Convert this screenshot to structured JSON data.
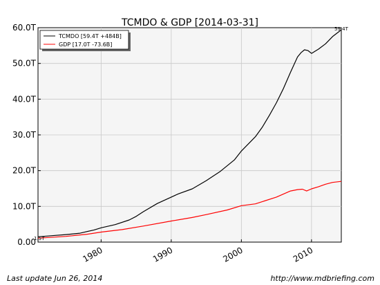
{
  "chart_data": {
    "type": "line",
    "title": "TCMDO & GDP  [2014-03-31]",
    "xlabel": "",
    "ylabel": "",
    "xlim": [
      1971,
      2014.25
    ],
    "ylim": [
      0,
      60
    ],
    "y_ticks": [
      0,
      10,
      20,
      30,
      40,
      50,
      60
    ],
    "y_tick_labels": [
      "0.00",
      "10.0T",
      "20.0T",
      "30.0T",
      "40.0T",
      "50.0T",
      "60.0T"
    ],
    "x_ticks": [
      1980,
      1990,
      2000,
      2010
    ],
    "x_tick_labels": [
      "1980",
      "1990",
      "2000",
      "2010"
    ],
    "grid": true,
    "legend_position": "top-left",
    "series": [
      {
        "name": "TCMDO [59.4T +484B]",
        "color": "#000000",
        "x": [
          1971,
          1973,
          1975,
          1977,
          1979,
          1980,
          1982,
          1984,
          1985,
          1986,
          1988,
          1990,
          1991,
          1993,
          1995,
          1997,
          1999,
          2000,
          2002,
          2003,
          2004,
          2005,
          2006,
          2007,
          2008,
          2008.5,
          2009,
          2009.5,
          2010,
          2010.5,
          2011,
          2012,
          2013,
          2014.25
        ],
        "values": [
          1.5,
          1.8,
          2.1,
          2.5,
          3.4,
          4.0,
          4.9,
          6.2,
          7.2,
          8.5,
          10.8,
          12.6,
          13.5,
          14.9,
          17.2,
          19.8,
          23.0,
          25.5,
          29.5,
          32.2,
          35.5,
          39.0,
          43.0,
          47.5,
          51.8,
          53.0,
          53.8,
          53.6,
          52.8,
          53.4,
          54.0,
          55.5,
          57.5,
          59.4
        ]
      },
      {
        "name": "GDP [17.0T -73.6B]",
        "color": "#ff0000",
        "x": [
          1971,
          1975,
          1978,
          1980,
          1983,
          1986,
          1990,
          1993,
          1995,
          1998,
          2000,
          2002,
          2005,
          2007,
          2008,
          2008.7,
          2009.3,
          2010,
          2011,
          2012,
          2013,
          2014.25
        ],
        "values": [
          1.1,
          1.6,
          2.2,
          2.8,
          3.5,
          4.5,
          5.9,
          6.9,
          7.7,
          9.0,
          10.2,
          10.7,
          12.6,
          14.3,
          14.7,
          14.8,
          14.3,
          14.9,
          15.5,
          16.2,
          16.7,
          17.0
        ]
      }
    ],
    "end_label": "59.4T",
    "start_label": "1.5T"
  },
  "footer": {
    "left": "Last update Jun 26, 2014",
    "right": "http://www.mdbriefing.com"
  }
}
